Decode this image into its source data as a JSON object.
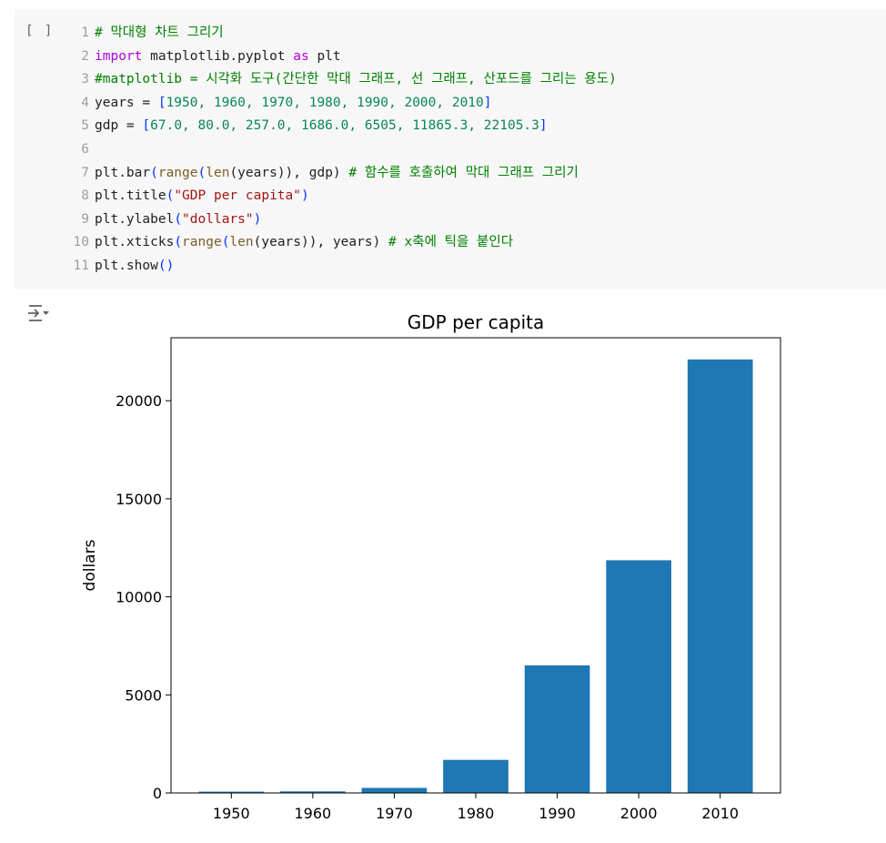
{
  "cell": {
    "run_indicator": "[ ]",
    "lines": [
      {
        "n": "1",
        "tokens": [
          {
            "t": "# 막대형 차트 그리기",
            "c": "comment"
          }
        ]
      },
      {
        "n": "2",
        "tokens": [
          {
            "t": "import",
            "c": "keyword"
          },
          {
            "t": " matplotlib.pyplot ",
            "c": "plain"
          },
          {
            "t": "as",
            "c": "keyword"
          },
          {
            "t": " plt",
            "c": "plain"
          }
        ]
      },
      {
        "n": "3",
        "tokens": [
          {
            "t": "#matplotlib = 시각화 도구(간단한 막대 그래프, 선 그래프, 산포드를 그리는 용도)",
            "c": "comment"
          }
        ]
      },
      {
        "n": "4",
        "tokens": [
          {
            "t": "years = ",
            "c": "plain"
          },
          {
            "t": "[",
            "c": "bracket"
          },
          {
            "t": "1950, 1960, 1970, 1980, 1990, 2000, 2010",
            "c": "number"
          },
          {
            "t": "]",
            "c": "bracket"
          }
        ]
      },
      {
        "n": "5",
        "tokens": [
          {
            "t": "gdp = ",
            "c": "plain"
          },
          {
            "t": "[",
            "c": "bracket"
          },
          {
            "t": "67.0, 80.0, 257.0, 1686.0, 6505, 11865.3, 22105.3",
            "c": "number"
          },
          {
            "t": "]",
            "c": "bracket"
          }
        ]
      },
      {
        "n": "6",
        "tokens": []
      },
      {
        "n": "7",
        "tokens": [
          {
            "t": "plt.bar",
            "c": "plain"
          },
          {
            "t": "(",
            "c": "bracket"
          },
          {
            "t": "range",
            "c": "builtin"
          },
          {
            "t": "(",
            "c": "bracket"
          },
          {
            "t": "len",
            "c": "builtin"
          },
          {
            "t": "(years)), gdp) ",
            "c": "plain"
          },
          {
            "t": "# 함수를 호출하여 막대 그래프 그리기",
            "c": "comment"
          }
        ]
      },
      {
        "n": "8",
        "tokens": [
          {
            "t": "plt.title",
            "c": "plain"
          },
          {
            "t": "(",
            "c": "bracket"
          },
          {
            "t": "\"GDP per capita\"",
            "c": "string"
          },
          {
            "t": ")",
            "c": "bracket"
          }
        ]
      },
      {
        "n": "9",
        "tokens": [
          {
            "t": "plt.ylabel",
            "c": "plain"
          },
          {
            "t": "(",
            "c": "bracket"
          },
          {
            "t": "\"dollars\"",
            "c": "string"
          },
          {
            "t": ")",
            "c": "bracket"
          }
        ]
      },
      {
        "n": "10",
        "tokens": [
          {
            "t": "plt.xticks",
            "c": "plain"
          },
          {
            "t": "(",
            "c": "bracket"
          },
          {
            "t": "range",
            "c": "builtin"
          },
          {
            "t": "(",
            "c": "bracket"
          },
          {
            "t": "len",
            "c": "builtin"
          },
          {
            "t": "(years)), years) ",
            "c": "plain"
          },
          {
            "t": "# x축에 틱을 붙인다",
            "c": "comment"
          }
        ]
      },
      {
        "n": "11",
        "tokens": [
          {
            "t": "plt.show",
            "c": "plain"
          },
          {
            "t": "()",
            "c": "bracket"
          }
        ]
      }
    ]
  },
  "output": {
    "icon": "output-toggle-icon"
  },
  "chart_data": {
    "type": "bar",
    "title": "GDP per capita",
    "xlabel": "",
    "ylabel": "dollars",
    "categories": [
      "1950",
      "1960",
      "1970",
      "1980",
      "1990",
      "2000",
      "2010"
    ],
    "values": [
      67.0,
      80.0,
      257.0,
      1686.0,
      6505,
      11865.3,
      22105.3
    ],
    "ylim": [
      0,
      23211
    ],
    "yticks": [
      "0",
      "5000",
      "10000",
      "15000",
      "20000"
    ],
    "bar_color": "#1f77b4",
    "grid": false
  }
}
